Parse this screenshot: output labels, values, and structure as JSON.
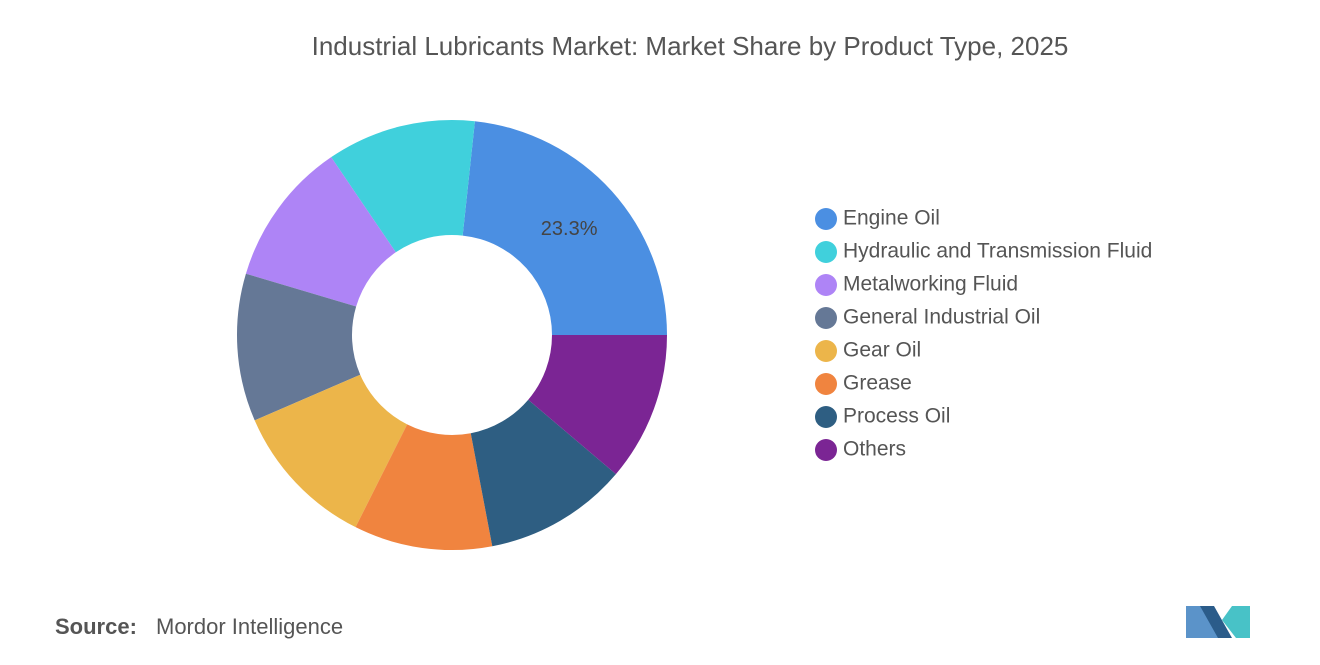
{
  "chart_data": {
    "type": "donut",
    "title": "Industrial Lubricants Market: Market Share by Product Type, 2025",
    "categories": [
      "Engine Oil",
      "Hydraulic and Transmission Fluid",
      "Metalworking Fluid",
      "General Industrial Oil",
      "Gear Oil",
      "Grease",
      "Process Oil",
      "Others"
    ],
    "values": [
      23.3,
      11.2,
      10.9,
      11.1,
      11.1,
      10.4,
      10.8,
      11.2
    ],
    "value_labels": [
      "23.3%",
      null,
      null,
      null,
      null,
      null,
      null,
      null
    ],
    "colors": [
      "#4b8fe2",
      "#40d0dc",
      "#ae84f6",
      "#657896",
      "#ecb54a",
      "#f0843f",
      "#2e5e82",
      "#7b2594"
    ],
    "legend": "right"
  },
  "source": {
    "label": "Source:",
    "text": "Mordor Intelligence"
  }
}
